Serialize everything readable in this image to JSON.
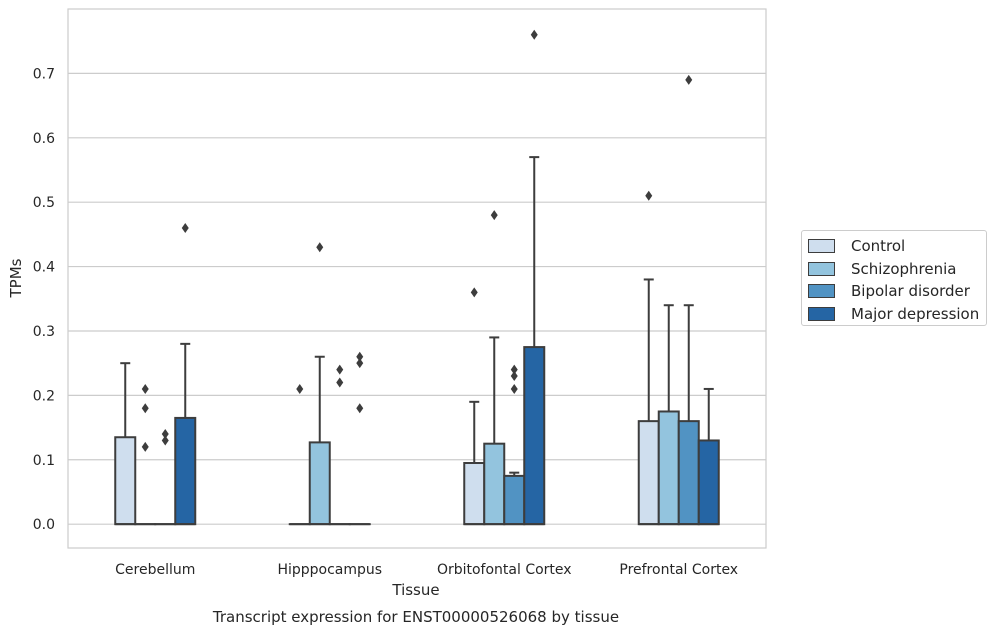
{
  "chart_data": {
    "type": "box",
    "title": "Transcript expression for ENST00000526068 by tissue",
    "xlabel": "Tissue",
    "ylabel": "TPMs",
    "ylim": [
      -0.037,
      0.8
    ],
    "yticks": [
      "0.0",
      "0.1",
      "0.2",
      "0.3",
      "0.4",
      "0.5",
      "0.6",
      "0.7"
    ],
    "categories": [
      "Cerebellum",
      "Hipppocampus",
      "Orbitofontal Cortex",
      "Prefrontal Cortex"
    ],
    "grid": "horizontal",
    "legend_position": "outside right",
    "series": [
      {
        "name": "Control",
        "color": "#cfdeee",
        "boxes": [
          {
            "q1": 0,
            "median": 0,
            "q3": 0.135,
            "whisker_low": 0,
            "whisker_high": 0.25,
            "outliers": []
          },
          {
            "q1": 0,
            "median": 0,
            "q3": 0,
            "whisker_low": 0,
            "whisker_high": 0,
            "outliers": [
              0.21
            ]
          },
          {
            "q1": 0,
            "median": 0,
            "q3": 0.095,
            "whisker_low": 0,
            "whisker_high": 0.19,
            "outliers": [
              0.36
            ]
          },
          {
            "q1": 0,
            "median": 0,
            "q3": 0.16,
            "whisker_low": 0,
            "whisker_high": 0.38,
            "outliers": [
              0.51
            ]
          }
        ]
      },
      {
        "name": "Schizophrenia",
        "color": "#93c4de",
        "boxes": [
          {
            "q1": 0,
            "median": 0,
            "q3": 0,
            "whisker_low": 0,
            "whisker_high": 0,
            "outliers": [
              0.21,
              0.18,
              0.12
            ]
          },
          {
            "q1": 0,
            "median": 0,
            "q3": 0.127,
            "whisker_low": 0,
            "whisker_high": 0.26,
            "outliers": [
              0.43
            ]
          },
          {
            "q1": 0,
            "median": 0,
            "q3": 0.125,
            "whisker_low": 0,
            "whisker_high": 0.29,
            "outliers": [
              0.48
            ]
          },
          {
            "q1": 0,
            "median": 0,
            "q3": 0.175,
            "whisker_low": 0,
            "whisker_high": 0.34,
            "outliers": []
          }
        ]
      },
      {
        "name": "Bipolar disorder",
        "color": "#5193c3",
        "boxes": [
          {
            "q1": 0,
            "median": 0,
            "q3": 0,
            "whisker_low": 0,
            "whisker_high": 0,
            "outliers": [
              0.14,
              0.13
            ]
          },
          {
            "q1": 0,
            "median": 0,
            "q3": 0,
            "whisker_low": 0,
            "whisker_high": 0,
            "outliers": [
              0.24,
              0.22
            ]
          },
          {
            "q1": 0,
            "median": 0,
            "q3": 0.075,
            "whisker_low": 0,
            "whisker_high": 0.08,
            "outliers": [
              0.24,
              0.23,
              0.21
            ]
          },
          {
            "q1": 0,
            "median": 0,
            "q3": 0.16,
            "whisker_low": 0,
            "whisker_high": 0.34,
            "outliers": [
              0.69
            ]
          }
        ]
      },
      {
        "name": "Major depression",
        "color": "#2565a4",
        "boxes": [
          {
            "q1": 0,
            "median": 0,
            "q3": 0.165,
            "whisker_low": 0,
            "whisker_high": 0.28,
            "outliers": [
              0.46
            ]
          },
          {
            "q1": 0,
            "median": 0,
            "q3": 0,
            "whisker_low": 0,
            "whisker_high": 0,
            "outliers": [
              0.26,
              0.25,
              0.18
            ]
          },
          {
            "q1": 0,
            "median": 0,
            "q3": 0.275,
            "whisker_low": 0,
            "whisker_high": 0.57,
            "outliers": [
              0.76
            ]
          },
          {
            "q1": 0,
            "median": 0,
            "q3": 0.13,
            "whisker_low": 0,
            "whisker_high": 0.21,
            "outliers": []
          }
        ]
      }
    ]
  }
}
